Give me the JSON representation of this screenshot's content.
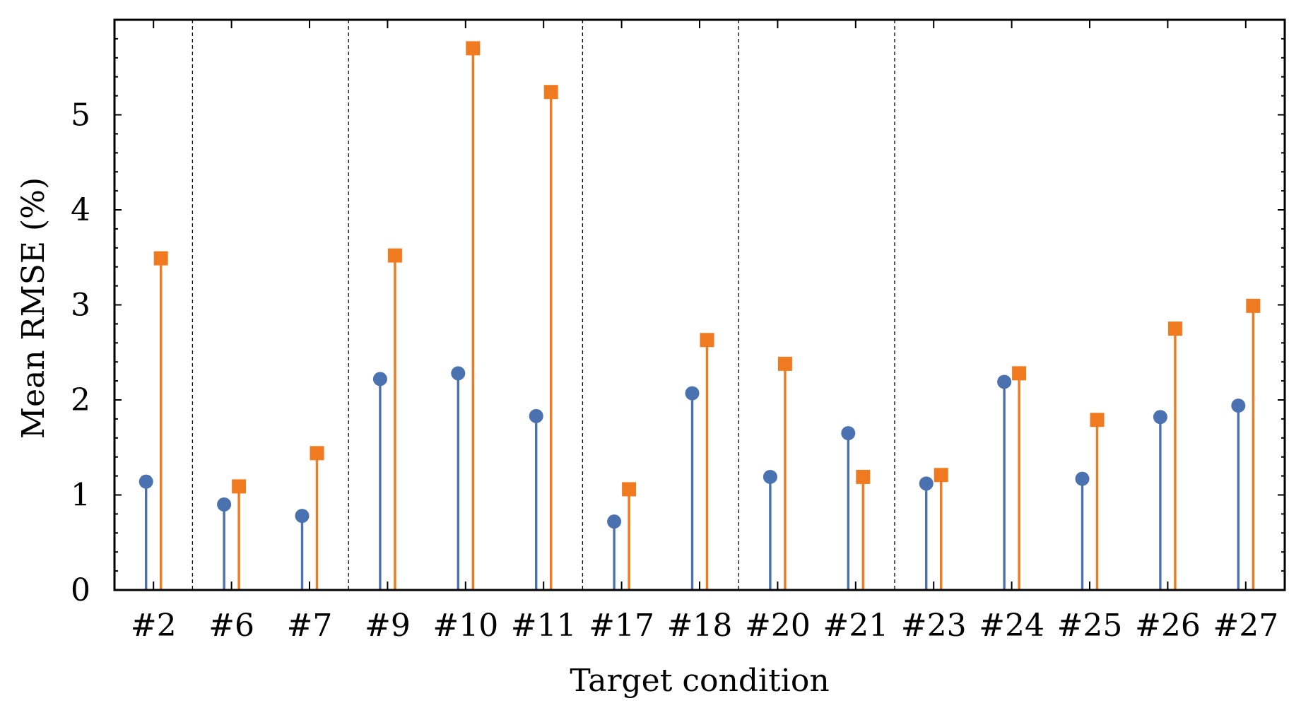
{
  "chart_data": {
    "type": "stem",
    "xlabel": "Target condition",
    "ylabel": "Mean RMSE (%)",
    "ylim": [
      0,
      6
    ],
    "yticks": [
      0,
      1,
      2,
      3,
      4,
      5
    ],
    "categories": [
      "#2",
      "#6",
      "#7",
      "#9",
      "#10",
      "#11",
      "#17",
      "#18",
      "#20",
      "#21",
      "#23",
      "#24",
      "#25",
      "#26",
      "#27"
    ],
    "group_separators_after": [
      "#2",
      "#7",
      "#11",
      "#18",
      "#21"
    ],
    "grid": false,
    "legend": "none",
    "series": [
      {
        "marker": "circle",
        "color": "#4a72b0",
        "values": [
          1.14,
          0.9,
          0.78,
          2.22,
          2.28,
          1.83,
          0.72,
          2.07,
          1.19,
          1.65,
          1.12,
          2.19,
          1.17,
          1.82,
          1.94
        ]
      },
      {
        "marker": "square",
        "color": "#f07a20",
        "values": [
          3.49,
          1.09,
          1.44,
          3.52,
          5.7,
          5.24,
          1.06,
          2.63,
          2.38,
          1.19,
          1.21,
          2.28,
          1.79,
          2.75,
          2.99
        ]
      }
    ]
  }
}
